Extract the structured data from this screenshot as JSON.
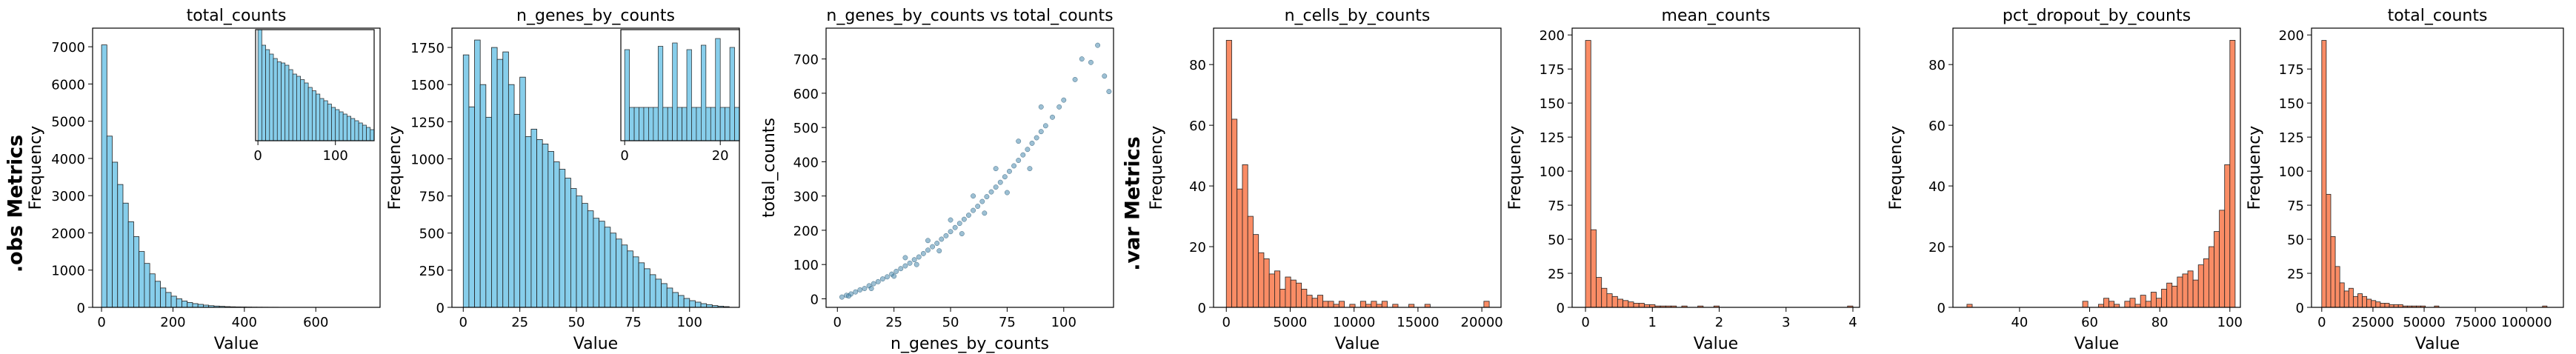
{
  "row_labels": {
    "obs": ".obs Metrics",
    "var": ".var Metrics"
  },
  "colors": {
    "obs_fill": "#87CEEB",
    "var_fill": "#FA8C65",
    "scatter_fill": "#4A8AAE",
    "edge": "#222222"
  },
  "chart_data": [
    {
      "type": "bar",
      "title": "total_counts",
      "xlabel": "Value",
      "ylabel": "Frequency",
      "xlim": [
        -25,
        780
      ],
      "ylim": [
        0,
        7500
      ],
      "xticks": [
        0,
        200,
        400,
        600
      ],
      "yticks": [
        0,
        1000,
        2000,
        3000,
        4000,
        5000,
        6000,
        7000
      ],
      "bin_start": 0,
      "bin_width": 15,
      "values": [
        7050,
        4600,
        3900,
        3300,
        2800,
        2300,
        1900,
        1500,
        1180,
        900,
        700,
        520,
        400,
        300,
        230,
        170,
        130,
        100,
        80,
        60,
        45,
        35,
        28,
        20,
        15,
        12,
        10,
        8,
        6,
        5,
        4,
        3,
        3,
        2,
        2,
        2,
        1,
        1,
        1,
        1,
        1,
        1,
        1,
        1,
        1,
        1,
        1,
        1,
        1,
        1,
        1
      ],
      "inset": {
        "xlim": [
          -3,
          150
        ],
        "ylim": [
          0,
          1.0
        ],
        "xticks": [
          0,
          100
        ],
        "bin_start": 0,
        "bin_width": 5,
        "values": [
          1.0,
          0.86,
          0.82,
          0.78,
          0.74,
          0.71,
          0.7,
          0.68,
          0.64,
          0.6,
          0.58,
          0.55,
          0.52,
          0.48,
          0.45,
          0.42,
          0.38,
          0.36,
          0.33,
          0.3,
          0.28,
          0.26,
          0.24,
          0.22,
          0.2,
          0.18,
          0.16,
          0.14,
          0.12,
          0.1
        ]
      }
    },
    {
      "type": "bar",
      "title": "n_genes_by_counts",
      "xlabel": "Value",
      "ylabel": "Frequency",
      "xlim": [
        -5,
        122
      ],
      "ylim": [
        0,
        1880
      ],
      "xticks": [
        0,
        25,
        50,
        75,
        100
      ],
      "yticks": [
        0,
        250,
        500,
        750,
        1000,
        1250,
        1500,
        1750
      ],
      "bin_start": 0,
      "bin_width": 2.5,
      "values": [
        1700,
        1350,
        1800,
        1500,
        1280,
        1750,
        1670,
        1720,
        1500,
        1300,
        1550,
        1150,
        1200,
        1130,
        1100,
        1050,
        980,
        930,
        870,
        800,
        750,
        700,
        650,
        600,
        580,
        540,
        500,
        460,
        420,
        380,
        340,
        300,
        260,
        220,
        190,
        160,
        130,
        100,
        80,
        60,
        45,
        35,
        25,
        18,
        12,
        8,
        5
      ],
      "inset": {
        "xlim": [
          -0.8,
          24
        ],
        "ylim": [
          0,
          1.0
        ],
        "xticks": [
          0,
          20
        ],
        "bin_start": 0,
        "bin_width": 1,
        "values": [
          0.82,
          0.3,
          0.3,
          0.3,
          0.3,
          0.3,
          0.3,
          0.85,
          0.3,
          0.3,
          0.88,
          0.3,
          0.3,
          0.82,
          0.3,
          0.3,
          0.86,
          0.3,
          0.3,
          0.92,
          0.3,
          0.3,
          0.84,
          0.3
        ]
      }
    },
    {
      "type": "scatter",
      "title": "n_genes_by_counts vs total_counts",
      "xlabel": "n_genes_by_counts",
      "ylabel": "total_counts",
      "xlim": [
        -5,
        122
      ],
      "ylim": [
        -25,
        790
      ],
      "xticks": [
        0,
        25,
        50,
        75,
        100
      ],
      "yticks": [
        0,
        100,
        200,
        300,
        400,
        500,
        600,
        700
      ],
      "points": [
        [
          2,
          5
        ],
        [
          4,
          10
        ],
        [
          6,
          14
        ],
        [
          8,
          20
        ],
        [
          10,
          26
        ],
        [
          12,
          30
        ],
        [
          14,
          38
        ],
        [
          16,
          44
        ],
        [
          18,
          50
        ],
        [
          20,
          58
        ],
        [
          22,
          64
        ],
        [
          24,
          72
        ],
        [
          26,
          80
        ],
        [
          28,
          88
        ],
        [
          30,
          96
        ],
        [
          32,
          104
        ],
        [
          34,
          114
        ],
        [
          36,
          122
        ],
        [
          38,
          132
        ],
        [
          40,
          142
        ],
        [
          42,
          152
        ],
        [
          44,
          162
        ],
        [
          46,
          174
        ],
        [
          48,
          184
        ],
        [
          50,
          196
        ],
        [
          52,
          208
        ],
        [
          54,
          220
        ],
        [
          56,
          232
        ],
        [
          58,
          244
        ],
        [
          60,
          258
        ],
        [
          62,
          270
        ],
        [
          64,
          284
        ],
        [
          66,
          298
        ],
        [
          68,
          312
        ],
        [
          70,
          326
        ],
        [
          72,
          340
        ],
        [
          74,
          356
        ],
        [
          76,
          372
        ],
        [
          78,
          388
        ],
        [
          80,
          404
        ],
        [
          82,
          420
        ],
        [
          84,
          436
        ],
        [
          86,
          454
        ],
        [
          88,
          470
        ],
        [
          90,
          488
        ],
        [
          92,
          505
        ],
        [
          95,
          530
        ],
        [
          98,
          560
        ],
        [
          100,
          580
        ],
        [
          105,
          640
        ],
        [
          108,
          700
        ],
        [
          112,
          690
        ],
        [
          115,
          740
        ],
        [
          118,
          650
        ],
        [
          120,
          605
        ],
        [
          5,
          8
        ],
        [
          15,
          30
        ],
        [
          25,
          66
        ],
        [
          35,
          100
        ],
        [
          45,
          140
        ],
        [
          55,
          190
        ],
        [
          65,
          250
        ],
        [
          75,
          310
        ],
        [
          85,
          380
        ],
        [
          30,
          120
        ],
        [
          40,
          170
        ],
        [
          50,
          230
        ],
        [
          60,
          300
        ],
        [
          70,
          380
        ],
        [
          80,
          460
        ],
        [
          90,
          560
        ]
      ]
    },
    {
      "type": "bar",
      "title": "n_cells_by_counts",
      "xlabel": "Value",
      "ylabel": "Frequency",
      "xlim": [
        -1000,
        21500
      ],
      "ylim": [
        0,
        92
      ],
      "xticks": [
        0,
        5000,
        10000,
        15000,
        20000
      ],
      "yticks": [
        0,
        20,
        40,
        60,
        80
      ],
      "bin_start": 0,
      "bin_width": 420,
      "values": [
        88,
        62,
        39,
        47,
        30,
        24,
        18,
        16,
        11,
        12,
        6,
        10,
        9,
        8,
        6,
        4,
        3,
        4,
        2,
        2,
        1,
        2,
        0,
        1,
        0,
        2,
        1,
        2,
        1,
        2,
        0,
        1,
        0,
        0,
        1,
        0,
        0,
        1,
        0,
        0,
        0,
        0,
        0,
        0,
        0,
        0,
        0,
        0,
        2
      ]
    },
    {
      "type": "bar",
      "title": "mean_counts",
      "xlabel": "Value",
      "ylabel": "Frequency",
      "xlim": [
        -0.2,
        4.1
      ],
      "ylim": [
        0,
        205
      ],
      "xticks": [
        0,
        1,
        2,
        3,
        4
      ],
      "yticks": [
        0,
        25,
        50,
        75,
        100,
        125,
        150,
        175,
        200
      ],
      "bin_start": 0,
      "bin_width": 0.08,
      "values": [
        196,
        57,
        22,
        14,
        10,
        8,
        6,
        5,
        4,
        3,
        3,
        2,
        2,
        1,
        1,
        1,
        1,
        0,
        1,
        0,
        0,
        1,
        0,
        0,
        1,
        0,
        0,
        0,
        0,
        0,
        0,
        0,
        0,
        0,
        0,
        0,
        0,
        0,
        0,
        0,
        0,
        0,
        0,
        0,
        0,
        0,
        0,
        0,
        0,
        1
      ]
    },
    {
      "type": "bar",
      "title": "pct_dropout_by_counts",
      "xlabel": "Value",
      "ylabel": "Frequency",
      "xlim": [
        21,
        103
      ],
      "ylim": [
        0,
        92
      ],
      "xticks": [
        40,
        60,
        80,
        100
      ],
      "yticks": [
        0,
        20,
        40,
        60,
        80
      ],
      "bin_start": 25,
      "bin_width": 1.5,
      "values": [
        1,
        0,
        0,
        0,
        0,
        0,
        0,
        0,
        0,
        0,
        0,
        0,
        0,
        0,
        0,
        0,
        0,
        0,
        0,
        0,
        0,
        0,
        2,
        0,
        0,
        1,
        3,
        2,
        1,
        0,
        2,
        3,
        1,
        4,
        2,
        5,
        3,
        6,
        8,
        7,
        10,
        11,
        12,
        9,
        14,
        16,
        20,
        25,
        32,
        47,
        88
      ]
    },
    {
      "type": "bar",
      "title": "total_counts",
      "xlabel": "Value",
      "ylabel": "Frequency",
      "xlim": [
        -5000,
        118000
      ],
      "ylim": [
        0,
        205
      ],
      "xticks": [
        0,
        25000,
        50000,
        75000,
        100000
      ],
      "yticks": [
        0,
        25,
        50,
        75,
        100,
        125,
        150,
        175,
        200
      ],
      "bin_start": 0,
      "bin_width": 2200,
      "values": [
        196,
        83,
        52,
        30,
        18,
        12,
        14,
        8,
        10,
        8,
        6,
        5,
        4,
        3,
        3,
        2,
        2,
        2,
        1,
        1,
        1,
        1,
        1,
        0,
        0,
        1,
        0,
        0,
        0,
        0,
        0,
        0,
        0,
        0,
        0,
        0,
        0,
        0,
        0,
        0,
        0,
        0,
        0,
        0,
        0,
        0,
        0,
        0,
        0,
        1
      ]
    }
  ]
}
